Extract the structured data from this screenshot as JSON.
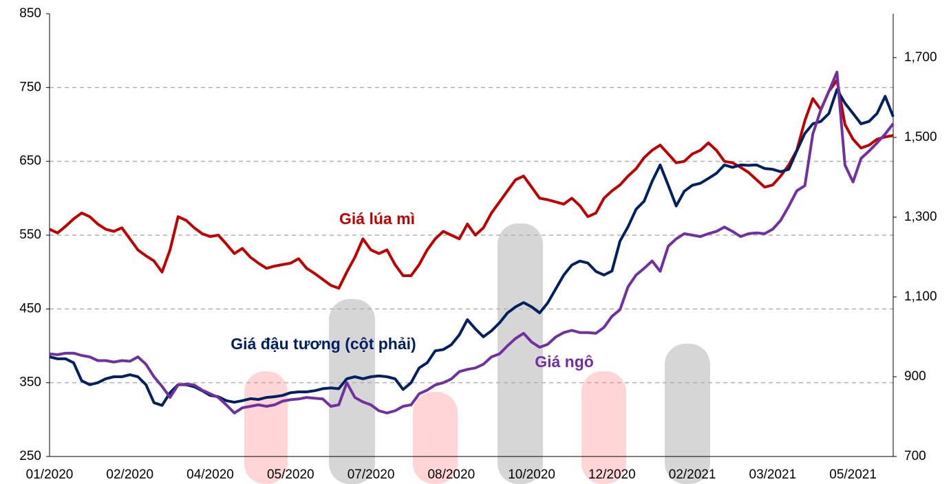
{
  "chart_data": {
    "type": "line",
    "annotations": [
      "Giá lúa mì",
      "Giá đậu tương (cột phải)",
      "Giá ngô"
    ],
    "categories": [
      "01/2020",
      null,
      null,
      null,
      null,
      null,
      null,
      null,
      null,
      null,
      "02/2020",
      null,
      null,
      null,
      null,
      null,
      null,
      null,
      null,
      null,
      "04/2020",
      null,
      null,
      null,
      null,
      null,
      null,
      null,
      null,
      null,
      "05/2020",
      null,
      null,
      null,
      null,
      null,
      null,
      null,
      null,
      null,
      "07/2020",
      null,
      null,
      null,
      null,
      null,
      null,
      null,
      null,
      null,
      "08/2020",
      null,
      null,
      null,
      null,
      null,
      null,
      null,
      null,
      null,
      "10/2020",
      null,
      null,
      null,
      null,
      null,
      null,
      null,
      null,
      null,
      "12/2020",
      null,
      null,
      null,
      null,
      null,
      null,
      null,
      null,
      null,
      "02/2021",
      null,
      null,
      null,
      null,
      null,
      null,
      null,
      null,
      null,
      "03/2021",
      null,
      null,
      null,
      null,
      null,
      null,
      null,
      null,
      null,
      "05/2021",
      null,
      null,
      null,
      null,
      null
    ],
    "series": [
      {
        "name": "Giá lúa mì",
        "color": "#c00000",
        "values": [
          558,
          553,
          562,
          572,
          580,
          575,
          565,
          558,
          555,
          560,
          545,
          530,
          522,
          515,
          500,
          530,
          575,
          570,
          560,
          552,
          548,
          550,
          538,
          525,
          532,
          520,
          512,
          505,
          508,
          510,
          512,
          518,
          505,
          498,
          490,
          482,
          478,
          500,
          520,
          545,
          530,
          525,
          530,
          510,
          495,
          495,
          510,
          530,
          545,
          555,
          550,
          545,
          565,
          550,
          560,
          580,
          595,
          610,
          625,
          630,
          615,
          600,
          598,
          595,
          592,
          600,
          590,
          575,
          580,
          600,
          610,
          618,
          630,
          640,
          655,
          665,
          672,
          660,
          648,
          650,
          660,
          665,
          675,
          665,
          650,
          648,
          642,
          635,
          625,
          615,
          618,
          630,
          645,
          665,
          705,
          735,
          720,
          745,
          760,
          700,
          680,
          668,
          672,
          680,
          683,
          685
        ]
      },
      {
        "name": "Giá đậu tương (cột phải)",
        "color": "#002060",
        "axis": "y2",
        "values": [
          950,
          945,
          945,
          935,
          890,
          880,
          885,
          895,
          900,
          900,
          905,
          900,
          880,
          835,
          828,
          860,
          880,
          880,
          875,
          865,
          853,
          850,
          840,
          836,
          840,
          845,
          843,
          848,
          850,
          853,
          860,
          862,
          862,
          865,
          870,
          872,
          870,
          895,
          900,
          895,
          900,
          902,
          900,
          895,
          868,
          885,
          922,
          935,
          965,
          968,
          980,
          1005,
          1043,
          1020,
          1000,
          1015,
          1035,
          1060,
          1075,
          1086,
          1075,
          1060,
          1085,
          1120,
          1155,
          1180,
          1190,
          1185,
          1164,
          1155,
          1165,
          1240,
          1276,
          1320,
          1340,
          1390,
          1431,
          1380,
          1328,
          1365,
          1380,
          1385,
          1397,
          1410,
          1431,
          1425,
          1431,
          1430,
          1431,
          1422,
          1420,
          1414,
          1420,
          1466,
          1510,
          1534,
          1540,
          1560,
          1620,
          1586,
          1560,
          1534,
          1540,
          1560,
          1603,
          1552
        ]
      },
      {
        "name": "Giá ngô",
        "color": "#7030a0",
        "values": [
          389,
          388,
          390,
          390,
          387,
          385,
          380,
          380,
          378,
          380,
          379,
          385,
          375,
          358,
          345,
          330,
          347,
          348,
          347,
          340,
          335,
          330,
          320,
          309,
          316,
          318,
          320,
          318,
          320,
          325,
          327,
          328,
          330,
          329,
          328,
          318,
          320,
          350,
          330,
          324,
          320,
          312,
          309,
          312,
          318,
          320,
          335,
          340,
          347,
          350,
          355,
          365,
          368,
          370,
          375,
          385,
          389,
          400,
          410,
          417,
          405,
          398,
          402,
          412,
          418,
          421,
          418,
          418,
          417,
          425,
          440,
          449,
          480,
          496,
          505,
          515,
          501,
          535,
          545,
          552,
          550,
          548,
          552,
          555,
          561,
          555,
          548,
          552,
          553,
          552,
          558,
          570,
          589,
          610,
          617,
          687,
          720,
          745,
          771,
          645,
          622,
          654,
          664,
          675,
          687,
          701
        ]
      }
    ],
    "ylim": [
      250,
      850
    ],
    "yticks": [
      250,
      350,
      450,
      550,
      650,
      750,
      850
    ],
    "y2lim": [
      700,
      1810
    ],
    "y2ticks": [
      700,
      900,
      {
        "value": 1100,
        "label": "1,100"
      },
      {
        "value": 1300,
        "label": "1,300"
      },
      {
        "value": 1500,
        "label": "1,500"
      },
      {
        "value": 1700,
        "label": "1,700"
      }
    ],
    "grid": true
  }
}
